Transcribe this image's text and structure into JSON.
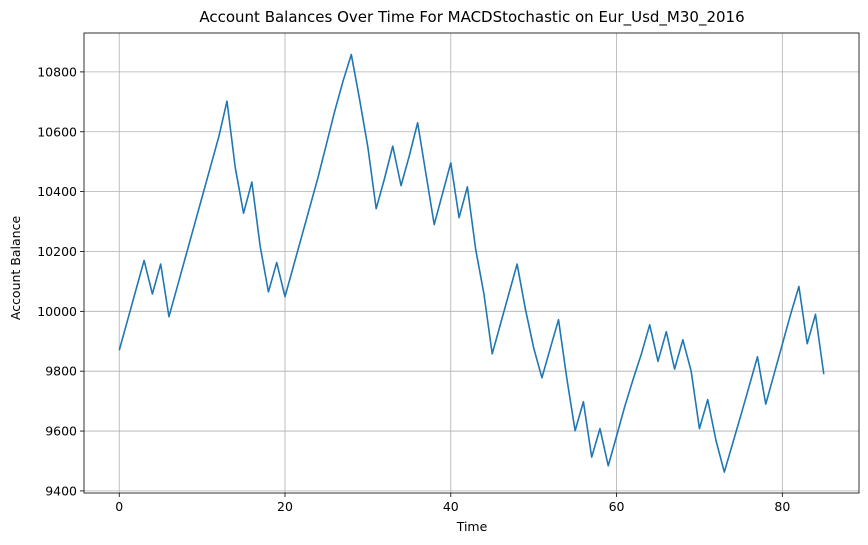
{
  "chart_data": {
    "type": "line",
    "title": "Account Balances Over Time For MACDStochastic on Eur_Usd_M30_2016",
    "xlabel": "Time",
    "ylabel": "Account Balance",
    "xlim": [
      -4.25,
      89.25
    ],
    "ylim": [
      9393,
      10930
    ],
    "xticks": [
      0,
      20,
      40,
      60,
      80
    ],
    "yticks": [
      9400,
      9600,
      9800,
      10000,
      10200,
      10400,
      10600,
      10800
    ],
    "grid": true,
    "series": [
      {
        "color": "#1f77b4",
        "x": [
          0,
          1,
          2,
          3,
          4,
          5,
          6,
          7,
          8,
          9,
          10,
          11,
          12,
          13,
          14,
          15,
          16,
          17,
          18,
          19,
          20,
          21,
          22,
          23,
          24,
          25,
          26,
          27,
          28,
          29,
          30,
          31,
          32,
          33,
          34,
          35,
          36,
          37,
          38,
          39,
          40,
          41,
          42,
          43,
          44,
          45,
          46,
          47,
          48,
          49,
          50,
          51,
          52,
          53,
          54,
          55,
          56,
          57,
          58,
          59,
          60,
          61,
          62,
          63,
          64,
          65,
          66,
          67,
          68,
          69,
          70,
          71,
          72,
          73,
          74,
          75,
          76,
          77,
          78,
          79,
          80,
          81,
          82,
          83,
          84,
          85
        ],
        "y": [
          9870,
          9970,
          10070,
          10170,
          10058,
          10158,
          9982,
          10082,
          10182,
          10282,
          10382,
          10482,
          10582,
          10702,
          10480,
          10328,
          10432,
          10218,
          10065,
          10163,
          10049,
          10149,
          10249,
          10349,
          10449,
          10559,
          10669,
          10769,
          10858,
          10708,
          10548,
          10343,
          10443,
          10552,
          10420,
          10520,
          10630,
          10460,
          10290,
          10393,
          10496,
          10313,
          10416,
          10208,
          10058,
          9858,
          9958,
          10058,
          10158,
          10008,
          9878,
          9778,
          9876,
          9972,
          9776,
          9601,
          9698,
          9513,
          9608,
          9484,
          9583,
          9683,
          9773,
          9858,
          9955,
          9833,
          9932,
          9807,
          9905,
          9800,
          9608,
          9705,
          9568,
          9463,
          9558,
          9653,
          9750,
          9848,
          9690,
          9790,
          9890,
          9990,
          10083,
          9892,
          9990,
          9790
        ]
      }
    ]
  }
}
